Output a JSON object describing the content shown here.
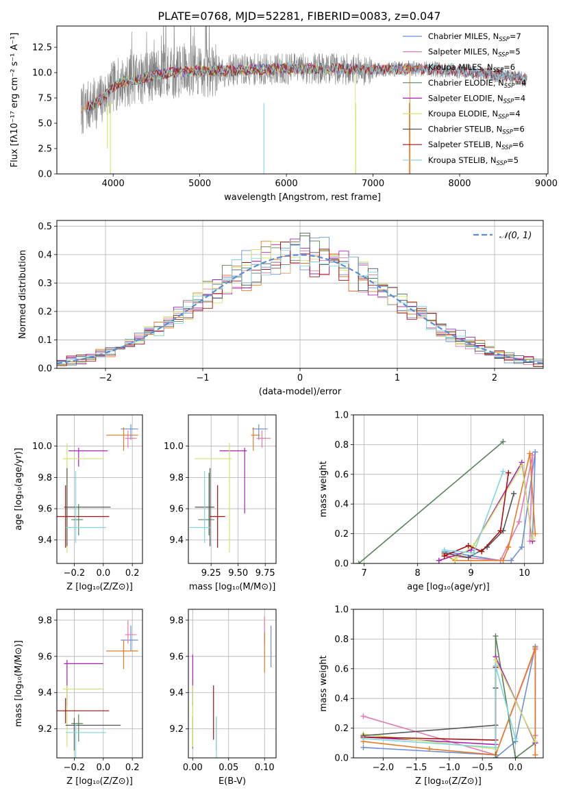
{
  "title": "PLATE=0768, MJD=52281, FIBERID=0083, z=0.047",
  "colors": {
    "chabrier_miles": "#6a8fd6",
    "salpeter_miles": "#e879ad",
    "kroupa_miles": "#e67a22",
    "chabrier_elodie": "#5b7f5b",
    "salpeter_elodie": "#a61fb5",
    "kroupa_elodie": "#cfe36a",
    "chabrier_stelib": "#555555",
    "salpeter_stelib": "#a50f0f",
    "kroupa_stelib": "#7fd6dc",
    "gauss": "#5b8ad6",
    "grid": "#b0b0b0",
    "observed": "#808080"
  },
  "chart_data": [
    {
      "panel": "spectrum",
      "type": "line",
      "xlabel": "wavelength [Angstrom, rest frame]",
      "ylabel": "Flux [fλ10⁻¹⁷ erg cm⁻² s⁻¹ A⁻¹]",
      "xlim": [
        3350,
        9020
      ],
      "ylim": [
        0,
        14.6
      ],
      "xticks": [
        "4000",
        "5000",
        "6000",
        "7000",
        "8000",
        "9000"
      ],
      "yticks": [
        "0.0",
        "2.5",
        "5.0",
        "7.5",
        "10.0",
        "12.5"
      ],
      "legend": [
        {
          "label": "Chabrier MILES, N",
          "sub": "SSP",
          "tail": "=7"
        },
        {
          "label": "Salpeter MILES, N",
          "sub": "SSP",
          "tail": "=5"
        },
        {
          "label": "Kroupa MILES, N",
          "sub": "SSP",
          "tail": "=6"
        },
        {
          "label": "Chabrier ELODIE, N",
          "sub": "SSP",
          "tail": "=4"
        },
        {
          "label": "Salpeter ELODIE, N",
          "sub": "SSP",
          "tail": "=4"
        },
        {
          "label": "Kroupa ELODIE, N",
          "sub": "SSP",
          "tail": "=4"
        },
        {
          "label": "Chabrier STELIB, N",
          "sub": "SSP",
          "tail": "=6"
        },
        {
          "label": "Salpeter STELIB, N",
          "sub": "SSP",
          "tail": "=6"
        },
        {
          "label": "Kroupa STELIB, N",
          "sub": "SSP",
          "tail": "=5"
        }
      ],
      "continuum": [
        [
          3630,
          6.2
        ],
        [
          3700,
          6.6
        ],
        [
          3800,
          7.0
        ],
        [
          3900,
          7.6
        ],
        [
          4000,
          8.6
        ],
        [
          4100,
          9.1
        ],
        [
          4300,
          9.3
        ],
        [
          4500,
          9.8
        ],
        [
          4800,
          10.1
        ],
        [
          5200,
          10.2
        ],
        [
          5600,
          10.3
        ],
        [
          6000,
          10.4
        ],
        [
          6500,
          10.4
        ],
        [
          7000,
          10.3
        ],
        [
          7400,
          10.4
        ],
        [
          7800,
          10.3
        ],
        [
          8200,
          10.0
        ],
        [
          8600,
          9.6
        ],
        [
          8800,
          9.3
        ]
      ]
    },
    {
      "panel": "residuals",
      "type": "histogram",
      "xlabel": "(data-model)/error",
      "ylabel": "Normed distribution",
      "xlim": [
        -2.5,
        2.5
      ],
      "ylim": [
        0,
        0.52
      ],
      "xticks": [
        "−2",
        "−1",
        "0",
        "1",
        "2"
      ],
      "yticks": [
        "0.0",
        "0.1",
        "0.2",
        "0.3",
        "0.4",
        "0.5"
      ],
      "legend": "𝒩(0, 1)",
      "bin_width": 0.1
    },
    {
      "panel": "Z_vs_age",
      "type": "errorbar",
      "xlabel": "Z [log₁₀(Z/Z⊙)]",
      "ylabel": "age  [log₁₀(age/yr)]",
      "xlim": [
        -0.32,
        0.27
      ],
      "ylim": [
        9.25,
        10.2
      ],
      "xticks": [
        "−0.2",
        "0.0",
        "0.2"
      ],
      "yticks": [
        "9.4",
        "9.6",
        "9.8",
        "10.0"
      ],
      "points": [
        {
          "x": 0.19,
          "xerr": [
            0.07,
            0.05
          ],
          "y": 10.11,
          "yerr": [
            0.07,
            0.03
          ]
        },
        {
          "x": 0.17,
          "xerr": [
            0.02,
            0.06
          ],
          "y": 10.05,
          "yerr": [
            0.06,
            0.05
          ]
        },
        {
          "x": 0.14,
          "xerr": [
            0.12,
            0.1
          ],
          "y": 10.07,
          "yerr": [
            0.1,
            0.05
          ]
        },
        {
          "x": -0.17,
          "xerr": [
            0.05,
            0.03
          ],
          "y": 9.53,
          "yerr": [
            0.1,
            0.1
          ]
        },
        {
          "x": -0.17,
          "xerr": [
            0.07,
            0.2
          ],
          "y": 9.97,
          "yerr": [
            0.1,
            0.02
          ]
        },
        {
          "x": -0.25,
          "xerr": [
            0.03,
            0.25
          ],
          "y": 9.92,
          "yerr": [
            0.6,
            0.1
          ]
        },
        {
          "x": -0.25,
          "xerr": [
            0.02,
            0.3
          ],
          "y": 9.61,
          "yerr": [
            0.25,
            0.25
          ]
        },
        {
          "x": -0.26,
          "xerr": [
            0.06,
            0.3
          ],
          "y": 9.55,
          "yerr": [
            0.2,
            0.2
          ]
        },
        {
          "x": -0.19,
          "xerr": [
            0.07,
            0.21
          ],
          "y": 9.48,
          "yerr": [
            0.1,
            0.36
          ]
        }
      ]
    },
    {
      "panel": "mass_vs_age",
      "type": "errorbar",
      "xlabel": "mass [log₁₀(M/M⊙)]",
      "xlim": [
        9.04,
        9.85
      ],
      "ylim": [
        9.25,
        10.2
      ],
      "xticks": [
        "9.25",
        "9.50",
        "9.75"
      ],
      "yticks": [
        "9.4",
        "9.6",
        "9.8",
        "10.0"
      ],
      "points": [
        {
          "x": 9.69,
          "xerr": [
            0.06,
            0.08
          ],
          "y": 10.11,
          "yerr": [
            0.07,
            0.03
          ]
        },
        {
          "x": 9.72,
          "xerr": [
            0.05,
            0.08
          ],
          "y": 10.05,
          "yerr": [
            0.06,
            0.05
          ]
        },
        {
          "x": 9.64,
          "xerr": [
            0.02,
            0.06
          ],
          "y": 10.07,
          "yerr": [
            0.1,
            0.05
          ]
        },
        {
          "x": 9.23,
          "xerr": [
            0.1,
            0.05
          ],
          "y": 9.53,
          "yerr": [
            0.1,
            0.3
          ]
        },
        {
          "x": 9.56,
          "xerr": [
            0.23,
            0.02
          ],
          "y": 9.97,
          "yerr": [
            0.4,
            0.02
          ]
        },
        {
          "x": 9.42,
          "xerr": [
            0.32,
            0.02
          ],
          "y": 9.92,
          "yerr": [
            0.6,
            0.1
          ]
        },
        {
          "x": 9.24,
          "xerr": [
            0.14,
            0.04
          ],
          "y": 9.61,
          "yerr": [
            0.25,
            0.25
          ]
        },
        {
          "x": 9.31,
          "xerr": [
            0.07,
            0.07
          ],
          "y": 9.55,
          "yerr": [
            0.2,
            0.2
          ]
        },
        {
          "x": 9.19,
          "xerr": [
            0.14,
            0.05
          ],
          "y": 9.48,
          "yerr": [
            0.1,
            0.36
          ]
        }
      ]
    },
    {
      "panel": "age_vs_weight",
      "type": "line",
      "xlabel": "age  [log₁₀(age/yr)]",
      "ylabel": "mass weight",
      "xlim": [
        6.8,
        10.35
      ],
      "ylim": [
        0,
        1.0
      ],
      "xticks": [
        "7",
        "8",
        "9",
        "10"
      ],
      "yticks": [
        "0.0",
        "0.2",
        "0.4",
        "0.6",
        "0.8",
        "1.0"
      ],
      "series": [
        {
          "x": [
            8.5,
            9.55,
            9.75,
            9.95,
            10.2,
            10.15
          ],
          "y": [
            0.08,
            0.02,
            0.02,
            0.11,
            0.75,
            0.15
          ]
        },
        {
          "x": [
            8.55,
            9.55,
            9.9,
            10.15,
            10.1
          ],
          "y": [
            0.05,
            0.02,
            0.28,
            0.73,
            0.15
          ]
        },
        {
          "x": [
            8.5,
            8.7,
            9.6,
            9.7,
            10.1,
            10.2
          ],
          "y": [
            0.06,
            0.02,
            0.02,
            0.11,
            0.74,
            0.2
          ]
        },
        {
          "x": [
            6.9,
            9.6
          ],
          "y": [
            0.0,
            0.82
          ]
        },
        {
          "x": [
            8.4,
            9.0,
            9.95,
            10.15
          ],
          "y": [
            0.02,
            0.09,
            0.68,
            0.15
          ]
        },
        {
          "x": [
            8.7,
            9.05,
            9.95,
            10.15
          ],
          "y": [
            0.03,
            0.12,
            0.66,
            0.17
          ]
        },
        {
          "x": [
            8.5,
            8.95,
            9.3,
            9.6,
            9.8
          ],
          "y": [
            0.07,
            0.04,
            0.11,
            0.22,
            0.47
          ]
        },
        {
          "x": [
            8.5,
            8.95,
            9.2,
            9.55,
            9.7
          ],
          "y": [
            0.05,
            0.12,
            0.08,
            0.22,
            0.61
          ]
        },
        {
          "x": [
            8.5,
            9.05,
            9.6
          ],
          "y": [
            0.09,
            0.07,
            0.62
          ]
        }
      ]
    },
    {
      "panel": "Z_vs_mass",
      "type": "errorbar",
      "xlabel": "Z [log₁₀(Z/Z⊙)]",
      "ylabel": "mass [log₁₀(M/M⊙)]",
      "xlim": [
        -0.32,
        0.27
      ],
      "ylim": [
        9.04,
        9.86
      ],
      "xticks": [
        "−0.2",
        "0.0",
        "0.2"
      ],
      "yticks": [
        "9.2",
        "9.4",
        "9.6",
        "9.8"
      ],
      "points": [
        {
          "x": 0.19,
          "xerr": [
            0.07,
            0.05
          ],
          "y": 9.69,
          "yerr": [
            0.06,
            0.08
          ]
        },
        {
          "x": 0.17,
          "xerr": [
            0.02,
            0.06
          ],
          "y": 9.72,
          "yerr": [
            0.05,
            0.08
          ]
        },
        {
          "x": 0.14,
          "xerr": [
            0.12,
            0.1
          ],
          "y": 9.63,
          "yerr": [
            0.1,
            0.06
          ]
        },
        {
          "x": -0.17,
          "xerr": [
            0.05,
            0.03
          ],
          "y": 9.23,
          "yerr": [
            0.1,
            0.05
          ]
        },
        {
          "x": -0.25,
          "xerr": [
            0.02,
            0.25
          ],
          "y": 9.56,
          "yerr": [
            0.23,
            0.02
          ]
        },
        {
          "x": -0.25,
          "xerr": [
            0.03,
            0.25
          ],
          "y": 9.42,
          "yerr": [
            0.32,
            0.02
          ]
        },
        {
          "x": -0.2,
          "xerr": [
            0.06,
            0.32
          ],
          "y": 9.22,
          "yerr": [
            0.14,
            0.04
          ]
        },
        {
          "x": -0.26,
          "xerr": [
            0.06,
            0.3
          ],
          "y": 9.3,
          "yerr": [
            0.07,
            0.07
          ]
        },
        {
          "x": -0.19,
          "xerr": [
            0.07,
            0.21
          ],
          "y": 9.18,
          "yerr": [
            0.14,
            0.05
          ]
        }
      ]
    },
    {
      "panel": "EBV_vs_mass",
      "type": "errorbar",
      "xlabel": "E(B-V)",
      "xlim": [
        -0.006,
        0.116
      ],
      "ylim": [
        9.04,
        9.86
      ],
      "xticks": [
        "0.00",
        "0.05",
        "0.10"
      ],
      "yticks": [
        "9.2",
        "9.4",
        "9.6",
        "9.8"
      ],
      "points": [
        {
          "x": 0.109,
          "y": 9.69,
          "yerr": [
            0.15,
            0.08
          ]
        },
        {
          "x": 0.1,
          "y": 9.72,
          "yerr": [
            0.05,
            0.1
          ]
        },
        {
          "x": 0.1,
          "y": 9.63,
          "yerr": [
            0.12,
            0.1
          ]
        },
        {
          "x": 0.0,
          "y": 9.23,
          "yerr": [
            0.14,
            0.04
          ]
        },
        {
          "x": 0.0,
          "y": 9.56,
          "yerr": [
            0.23,
            0.05
          ]
        },
        {
          "x": 0.0,
          "y": 9.42,
          "yerr": [
            0.32,
            0.02
          ]
        },
        {
          "x": 0.033,
          "y": 9.22,
          "yerr": [
            0.14,
            0.04
          ]
        },
        {
          "x": 0.029,
          "y": 9.3,
          "yerr": [
            0.16,
            0.14
          ]
        },
        {
          "x": 0.033,
          "y": 9.18,
          "yerr": [
            0.14,
            0.09
          ]
        }
      ]
    },
    {
      "panel": "Z_vs_weight",
      "type": "line",
      "xlabel": "Z [log₁₀(Z/Z⊙)]",
      "ylabel": "mass weight",
      "xlim": [
        -2.45,
        0.42
      ],
      "ylim": [
        0,
        1.0
      ],
      "xticks": [
        "−2.0",
        "−1.5",
        "−1.0",
        "−0.5",
        "0.0"
      ],
      "yticks": [
        "0.0",
        "0.2",
        "0.4",
        "0.6",
        "0.8",
        "1.0"
      ],
      "series": [
        {
          "x": [
            -2.3,
            -0.3,
            -0.3,
            0.0,
            0.3,
            0.3
          ],
          "y": [
            0.07,
            0.02,
            0.0,
            0.11,
            0.75,
            0.15
          ]
        },
        {
          "x": [
            -2.3,
            -0.3,
            0.3,
            0.3
          ],
          "y": [
            0.28,
            0.02,
            0.73,
            0.15
          ]
        },
        {
          "x": [
            -2.3,
            -1.3,
            -0.3,
            0.3,
            0.3
          ],
          "y": [
            0.11,
            0.06,
            0.02,
            0.74,
            0.02
          ]
        },
        {
          "x": [
            -0.3,
            -0.3,
            0.0,
            0.3
          ],
          "y": [
            0.0,
            0.82,
            0.0,
            0.1
          ]
        },
        {
          "x": [
            -2.3,
            -0.3,
            -0.3,
            0.3
          ],
          "y": [
            0.14,
            0.09,
            0.68,
            0.1
          ]
        },
        {
          "x": [
            -2.3,
            -0.3,
            -0.3,
            0.3
          ],
          "y": [
            0.16,
            0.06,
            0.66,
            0.11
          ]
        },
        {
          "x": [
            -2.3,
            -0.3,
            -0.3
          ],
          "y": [
            0.15,
            0.22,
            0.47
          ]
        },
        {
          "x": [
            -2.3,
            -0.3,
            -0.3
          ],
          "y": [
            0.14,
            0.12,
            0.61
          ]
        },
        {
          "x": [
            -2.3,
            -0.3,
            -0.3,
            0.0
          ],
          "y": [
            0.13,
            0.07,
            0.62,
            0.13
          ]
        }
      ]
    }
  ]
}
